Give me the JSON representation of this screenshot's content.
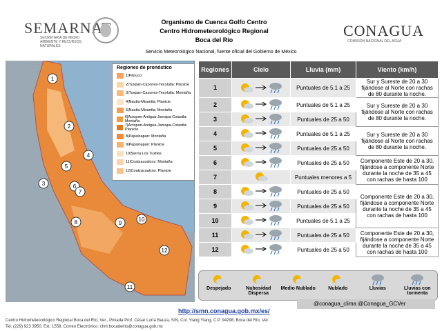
{
  "header": {
    "left_logo": "SEMARNAT",
    "left_logo_sub": "SECRETARÍA DE MEDIO AMBIENTE Y RECURSOS NATURALES",
    "title_lines": [
      "Organismo de Cuenca Golfo Centro",
      "Centro Hidrometeorológico Regional",
      "Boca del Río"
    ],
    "subtitle": "Servicio Meteorológico Nacional, fuente oficial del Gobierno de México",
    "right_logo": "CONAGUA",
    "right_logo_sub": "COMISIÓN NACIONAL DEL AGUA"
  },
  "map": {
    "legend_title": "Regiones de pronóstico",
    "regions": [
      {
        "label": "1|Pánuco",
        "color": "#f4a460"
      },
      {
        "label": "2|Tuxpan-Cazones-Tecolutla: Planicie",
        "color": "#fbd5a5"
      },
      {
        "label": "3|Tuxpan-Cazones-Tecolutla: Montaña",
        "color": "#f7b878"
      },
      {
        "label": "4|Nautla-Misantla: Planicie",
        "color": "#fde3c4"
      },
      {
        "label": "5|Nautla-Misantla: Montaña",
        "color": "#f0a050"
      },
      {
        "label": "6|Actopan-Antigua-Jamapa-Cotaxtla: Montaña",
        "color": "#f29a3e"
      },
      {
        "label": "7|Actopan-Antigua-Jamapa-Cotaxtla: Planicie",
        "color": "#e2791d"
      },
      {
        "label": "8|Papaloapan: Montaña",
        "color": "#ef8c32"
      },
      {
        "label": "9|Papaloapan: Planicie",
        "color": "#f6b36d"
      },
      {
        "label": "10|Sierra Los Tuxtlas",
        "color": "#fbe0c0"
      },
      {
        "label": "11|Coatzacoalcos: Montaña",
        "color": "#fcd3a8"
      },
      {
        "label": "12|Coatzacoalcos: Planicie",
        "color": "#f9c48c"
      }
    ],
    "markers": [
      "1",
      "2",
      "3",
      "4",
      "5",
      "6",
      "7",
      "8",
      "9",
      "10",
      "11",
      "12"
    ]
  },
  "table": {
    "headers": [
      "Regiones",
      "Cielo",
      "Lluvia (mm)",
      "Viento (km/h)"
    ],
    "groups": [
      {
        "rows": [
          {
            "region": "1",
            "lluvia": "Puntuales de 5.1 a 25"
          }
        ],
        "viento": "Sur y Sureste de 20 a 30 fijándose al Norte con rachas de 80 durante la noche."
      },
      {
        "rows": [
          {
            "region": "2",
            "lluvia": "Puntuales de 5.1 a 25"
          },
          {
            "region": "3",
            "lluvia": "Puntuales de 25 a 50"
          }
        ],
        "viento": "Sur y Sureste de 20 a 30 fijándose al Norte con rachas de 80 durante la noche."
      },
      {
        "rows": [
          {
            "region": "4",
            "lluvia": "Puntuales de 5.1 a 25"
          },
          {
            "region": "5",
            "lluvia": "Puntuales de 25 a 50"
          }
        ],
        "viento": "Sur y Sureste de 20 a 30 fijándose al Norte con rachas de 80 durante la noche."
      },
      {
        "rows": [
          {
            "region": "6",
            "lluvia": "Puntuales de 25 a 50"
          },
          {
            "region": "7",
            "lluvia": "Puntuales menores a 5"
          }
        ],
        "viento": "Componente Este de 20 a 30, fijándose a componente Norte durante la noche de 35 a 45 con rachas de hasta 100"
      },
      {
        "rows": [
          {
            "region": "8",
            "lluvia": "Puntuales de 25 a 50"
          },
          {
            "region": "9",
            "lluvia": "Puntuales de 25 a 50"
          },
          {
            "region": "10",
            "lluvia": "Puntuales de 5.1 a 25"
          }
        ],
        "viento": "Componente Este de 20 a 30, fijándose a componente Norte durante la noche de 35 a 45 con rachas de hasta 100"
      },
      {
        "rows": [
          {
            "region": "11",
            "lluvia": "Puntuales de 25 a 50"
          },
          {
            "region": "12",
            "lluvia": "Puntuales de 25 a 50"
          }
        ],
        "viento": "Componente Este de 20 a 30, fijándose a componente Norte durante la noche de 35 a 45 con rachas de hasta 100"
      }
    ]
  },
  "legend": [
    "Despejado",
    "Nubosidad Dispersa",
    "Medio Nublado",
    "Nublado",
    "Lluvias",
    "Lluvias con tormenta"
  ],
  "links": {
    "url": "http://smn.conagua.gob.mx/es/",
    "twitter": "@conagua_clima   @Conagua_GCVer"
  },
  "footer": [
    "Centro Hidrometeorológico Regional Boca del Río, Ver., Privada Prof. César Luría Bauza, S/N, Col. Ylang Ylang, C.P. 94298, Boca del Río, Ver.",
    "Tel. (229) 923 3950, Ext. 1558, Correo Electrónico: chrir.bocadelrio@conagua.gob.mx"
  ]
}
